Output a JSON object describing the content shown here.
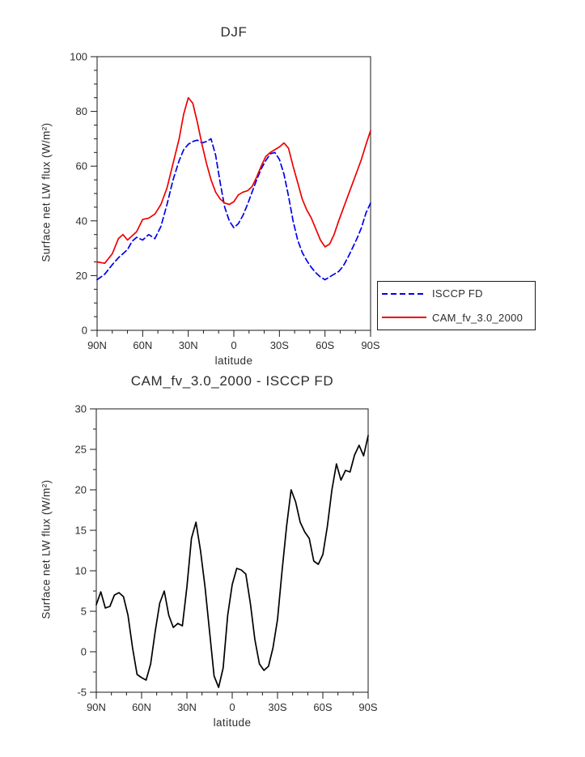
{
  "colors": {
    "isccp_line": "#0000ee",
    "cam_line": "#ee0000",
    "diff_line": "#000000",
    "frame": "#1a1a1a",
    "text": "#2d2d2d"
  },
  "chart_data": [
    {
      "type": "line",
      "title": "DJF",
      "xlabel": "latitude",
      "ylabel": "Surface net LW flux (W/m²)",
      "xlim": [
        90,
        -90
      ],
      "ylim": [
        0,
        100
      ],
      "yticks": [
        0,
        20,
        40,
        60,
        80,
        100
      ],
      "y_minor_step": 5,
      "xticks": [
        90,
        60,
        30,
        0,
        -30,
        -60,
        -90
      ],
      "xtick_labels": [
        "90N",
        "60N",
        "30N",
        "0",
        "30S",
        "60S",
        "90S"
      ],
      "x_minor_step": 10,
      "grid": false,
      "legend_position": "outside-right",
      "x": [
        90,
        85,
        80,
        76,
        73,
        70,
        67,
        64,
        60,
        56,
        52,
        48,
        44,
        40,
        36,
        33,
        30,
        27,
        24,
        21,
        18,
        15,
        12,
        9,
        6,
        3,
        0,
        -3,
        -6,
        -9,
        -12,
        -15,
        -18,
        -21,
        -24,
        -27,
        -30,
        -33,
        -36,
        -39,
        -42,
        -45,
        -48,
        -51,
        -54,
        -57,
        -60,
        -63,
        -66,
        -69,
        -72,
        -75,
        -78,
        -81,
        -84,
        -87,
        -90
      ],
      "series": [
        {
          "name": "ISCCP FD",
          "color": "#0000ee",
          "dash": [
            7,
            4
          ],
          "values": [
            18.5,
            20.5,
            24,
            26.5,
            28,
            29.5,
            32.5,
            34,
            33,
            35,
            33.5,
            38,
            46,
            55,
            62,
            66,
            68,
            69,
            69.5,
            68.5,
            69,
            70,
            64,
            54,
            45,
            40,
            37.5,
            39,
            42,
            46,
            50.5,
            55,
            59,
            62,
            64.5,
            65,
            62.5,
            57,
            49,
            40,
            33,
            28.5,
            25.5,
            23,
            21,
            19.5,
            18.5,
            19.5,
            20.5,
            21.5,
            23.5,
            26.5,
            30,
            33.5,
            37.5,
            43,
            46.5
          ]
        },
        {
          "name": "CAM_fv_3.0_2000",
          "color": "#ee0000",
          "dash": null,
          "values": [
            25,
            24.5,
            28,
            33.5,
            35,
            33,
            34.5,
            36,
            40.5,
            41,
            42.5,
            46,
            52,
            61,
            70,
            79,
            85,
            83,
            76,
            68,
            61,
            55,
            50.5,
            48,
            46.5,
            46,
            47,
            49.5,
            50.5,
            51,
            52.5,
            56,
            60,
            63.5,
            65,
            66,
            67,
            68.5,
            66.5,
            60,
            54,
            48,
            44,
            41,
            37,
            33,
            30.5,
            31.5,
            35,
            40,
            44.5,
            49,
            53.5,
            58,
            62.5,
            68,
            73
          ]
        }
      ]
    },
    {
      "type": "line",
      "title": "CAM_fv_3.0_2000 - ISCCP FD",
      "xlabel": "latitude",
      "ylabel": "Surface net LW flux (W/m²)",
      "xlim": [
        90,
        -90
      ],
      "ylim": [
        -5,
        30
      ],
      "yticks": [
        -5,
        0,
        5,
        10,
        15,
        20,
        25,
        30
      ],
      "y_minor_step": 2.5,
      "xticks": [
        90,
        60,
        30,
        0,
        -30,
        -60,
        -90
      ],
      "xtick_labels": [
        "90N",
        "60N",
        "30N",
        "0",
        "30S",
        "60S",
        "90S"
      ],
      "x_minor_step": 10,
      "grid": false,
      "legend_position": "none",
      "x": [
        90,
        87,
        84,
        81,
        78,
        75,
        72,
        69,
        66,
        63,
        60,
        57,
        54,
        51,
        48,
        45,
        42,
        39,
        36,
        33,
        30,
        27,
        24,
        21,
        18,
        15,
        12,
        9,
        6,
        3,
        0,
        -3,
        -6,
        -9,
        -12,
        -15,
        -18,
        -21,
        -24,
        -27,
        -30,
        -33,
        -36,
        -39,
        -42,
        -45,
        -48,
        -51,
        -54,
        -57,
        -60,
        -63,
        -66,
        -69,
        -72,
        -75,
        -78,
        -81,
        -84,
        -87,
        -90
      ],
      "series": [
        {
          "name": "CAM_fv_3.0_2000 - ISCCP FD",
          "color": "#000000",
          "dash": null,
          "values": [
            5.8,
            7.4,
            5.4,
            5.6,
            7.0,
            7.3,
            6.8,
            4.5,
            0.5,
            -2.8,
            -3.2,
            -3.5,
            -1.5,
            2.5,
            6.0,
            7.5,
            4.5,
            3.0,
            3.5,
            3.2,
            8.0,
            14.0,
            16.0,
            12.5,
            8.0,
            2.5,
            -3.0,
            -4.4,
            -2.0,
            4.5,
            8.3,
            10.3,
            10.1,
            9.6,
            6.0,
            1.5,
            -1.5,
            -2.3,
            -1.8,
            0.5,
            4.0,
            10.0,
            15.5,
            20.0,
            18.5,
            16.0,
            14.8,
            14.0,
            11.2,
            10.8,
            12.0,
            15.5,
            20.0,
            23.2,
            21.2,
            22.4,
            22.2,
            24.3,
            25.5,
            24.2,
            26.7
          ]
        }
      ]
    }
  ]
}
